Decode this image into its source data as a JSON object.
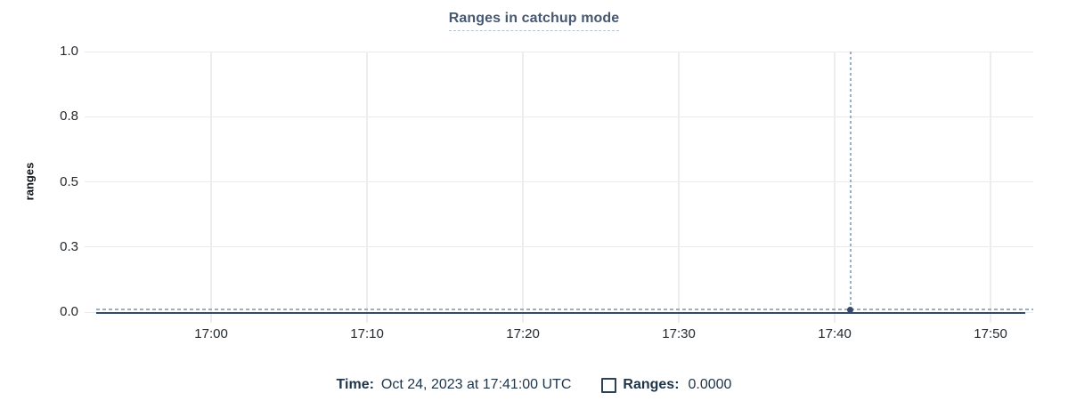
{
  "title": {
    "text": "Ranges in catchup mode"
  },
  "legend": {
    "time_label": "Time:",
    "time_value": "Oct 24, 2023 at 17:41:00 UTC",
    "series_label": "Ranges:",
    "series_value": "0.0000",
    "checkbox_checked": false
  },
  "colors": {
    "accent": "#475872",
    "line": "#35496b",
    "grid": "#eaeaea",
    "crosshair_dash": "#9caec0",
    "tick_text": "#24292e",
    "legend_text": "#1e3449"
  },
  "chart_data": {
    "type": "line",
    "title": "Ranges in catchup mode",
    "xlabel": "",
    "ylabel": "ranges",
    "ylim": [
      0,
      1
    ],
    "grid": true,
    "y_ticks": [
      {
        "value": 0,
        "label": "0.0"
      },
      {
        "value": 0.25,
        "label": "0.3"
      },
      {
        "value": 0.5,
        "label": "0.5"
      },
      {
        "value": 0.75,
        "label": "0.8"
      },
      {
        "value": 1,
        "label": "1.0"
      }
    ],
    "x_domain_minutes": [
      1012.51,
      1072.74
    ],
    "x_ticks": [
      {
        "minute": 1020,
        "label": "17:00"
      },
      {
        "minute": 1030,
        "label": "17:10"
      },
      {
        "minute": 1040,
        "label": "17:20"
      },
      {
        "minute": 1050,
        "label": "17:30"
      },
      {
        "minute": 1060,
        "label": "17:40"
      },
      {
        "minute": 1070,
        "label": "17:50"
      }
    ],
    "series": [
      {
        "name": "Ranges",
        "color": "#35496b",
        "points": [
          {
            "minute": 1012.6,
            "value": 0
          },
          {
            "minute": 1072.2,
            "value": 0
          }
        ]
      }
    ],
    "cursor": {
      "minute": 1061,
      "value": 0,
      "time_display": "Oct 24, 2023 at 17:41:00 UTC",
      "value_display": "0.0000"
    },
    "legend_position": "bottom"
  }
}
